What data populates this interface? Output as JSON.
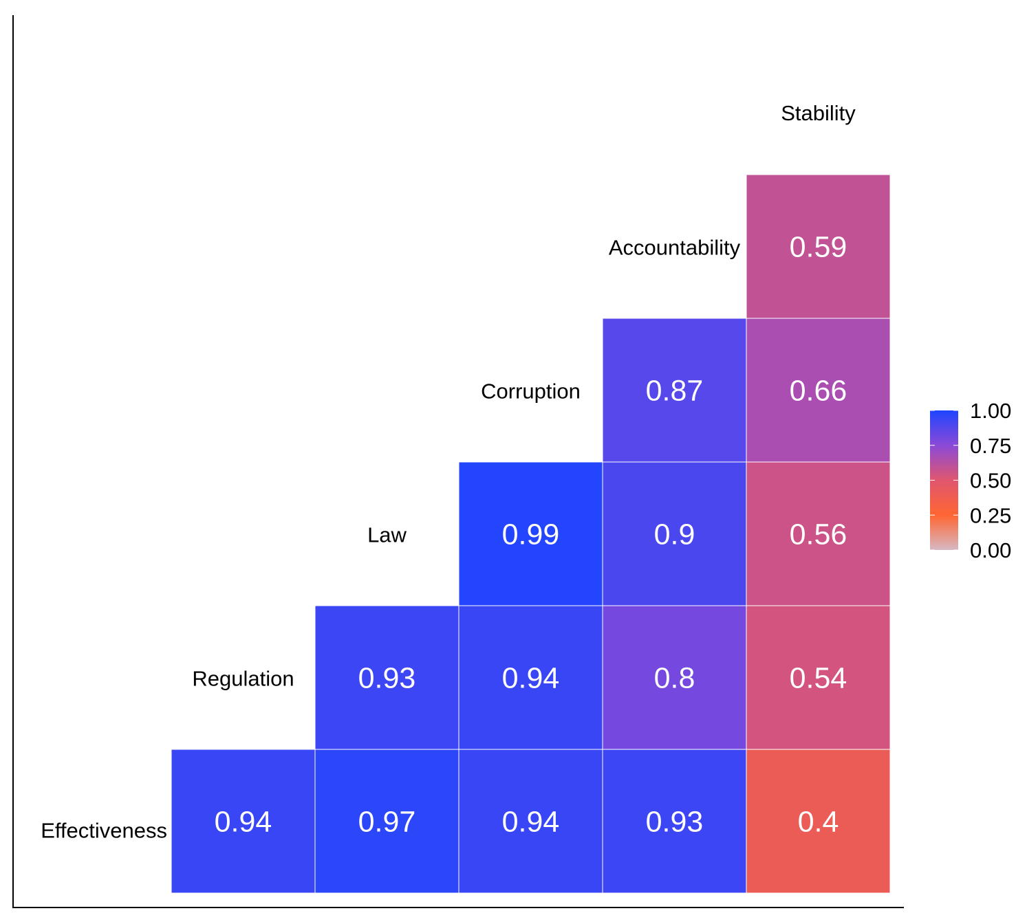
{
  "chart_data": {
    "type": "heatmap",
    "title": "",
    "xlabel": "",
    "ylabel": "",
    "variables": [
      "Effectiveness",
      "Regulation",
      "Law",
      "Corruption",
      "Accountability",
      "Stability"
    ],
    "cells": [
      {
        "row": "Effectiveness",
        "col": "Regulation",
        "value": 0.94,
        "label": "0.94"
      },
      {
        "row": "Effectiveness",
        "col": "Law",
        "value": 0.97,
        "label": "0.97"
      },
      {
        "row": "Effectiveness",
        "col": "Corruption",
        "value": 0.94,
        "label": "0.94"
      },
      {
        "row": "Effectiveness",
        "col": "Accountability",
        "value": 0.93,
        "label": "0.93"
      },
      {
        "row": "Effectiveness",
        "col": "Stability",
        "value": 0.4,
        "label": "0.4"
      },
      {
        "row": "Regulation",
        "col": "Law",
        "value": 0.93,
        "label": "0.93"
      },
      {
        "row": "Regulation",
        "col": "Corruption",
        "value": 0.94,
        "label": "0.94"
      },
      {
        "row": "Regulation",
        "col": "Accountability",
        "value": 0.8,
        "label": "0.8"
      },
      {
        "row": "Regulation",
        "col": "Stability",
        "value": 0.54,
        "label": "0.54"
      },
      {
        "row": "Law",
        "col": "Corruption",
        "value": 0.99,
        "label": "0.99"
      },
      {
        "row": "Law",
        "col": "Accountability",
        "value": 0.9,
        "label": "0.9"
      },
      {
        "row": "Law",
        "col": "Stability",
        "value": 0.56,
        "label": "0.56"
      },
      {
        "row": "Corruption",
        "col": "Accountability",
        "value": 0.87,
        "label": "0.87"
      },
      {
        "row": "Corruption",
        "col": "Stability",
        "value": 0.66,
        "label": "0.66"
      },
      {
        "row": "Accountability",
        "col": "Stability",
        "value": 0.59,
        "label": "0.59"
      }
    ],
    "legend": {
      "position": "right",
      "ticks": [
        "0.00",
        "0.25",
        "0.50",
        "0.75",
        "1.00"
      ],
      "range": [
        0,
        1
      ],
      "colors": [
        "#d7b8c3",
        "#ff6633",
        "#e0566e",
        "#8b4ad8",
        "#1f45ff"
      ]
    },
    "grid": false
  }
}
